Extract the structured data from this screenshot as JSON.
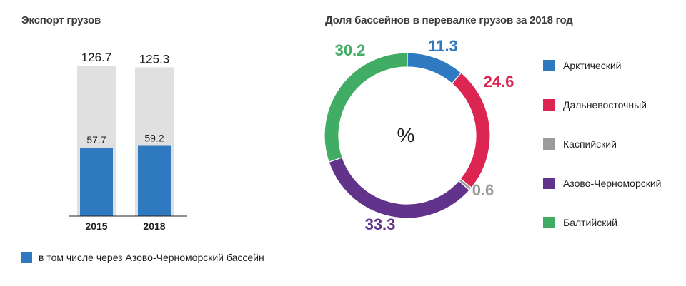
{
  "left_chart": {
    "title": "Экспорт грузов",
    "legend_label": "в том числе через Азово-Черноморский бассейн"
  },
  "right_chart": {
    "title": "Доля бассейнов в перевалке грузов за 2018 год",
    "center_label": "%"
  },
  "chart_data": [
    {
      "type": "bar",
      "title": "Экспорт грузов",
      "categories": [
        "2015",
        "2018"
      ],
      "series": [
        {
          "values": [
            126.7,
            125.3
          ],
          "color": "#e0e0e1"
        },
        {
          "name": "в том числе через Азово-Черноморский бассейн",
          "values": [
            57.7,
            59.2
          ],
          "color": "#2f79c1"
        }
      ],
      "value_labels": [
        [
          "126.7",
          "125.3"
        ],
        [
          "57.7",
          "59.2"
        ]
      ],
      "ylim": [
        0,
        140
      ],
      "overlap": true
    },
    {
      "type": "pie",
      "donut": true,
      "title": "Доля бассейнов в перевалке грузов за 2018 год",
      "slices": [
        {
          "name": "Арктический",
          "value": 11.3,
          "label": "11.3",
          "color": "#2f79c1"
        },
        {
          "name": "Дальневосточный",
          "value": 24.6,
          "label": "24.6",
          "color": "#dc2550"
        },
        {
          "name": "Каспийский",
          "value": 0.6,
          "label": "0.6",
          "color": "#9c9c9c"
        },
        {
          "name": "Азово-Черноморский",
          "value": 33.3,
          "label": "33.3",
          "color": "#62338b"
        },
        {
          "name": "Балтийский",
          "value": 30.2,
          "label": "30.2",
          "color": "#41ad64"
        }
      ]
    }
  ]
}
